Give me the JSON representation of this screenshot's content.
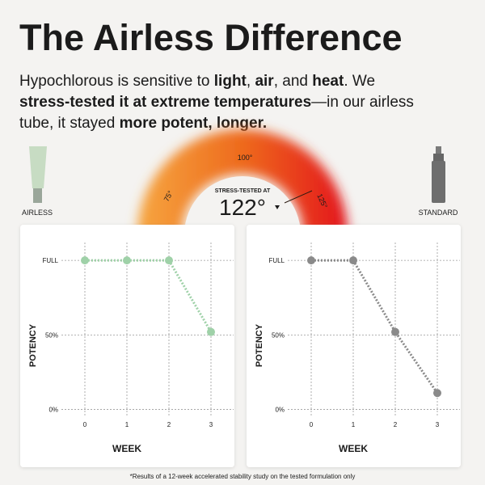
{
  "header": {
    "title": "The Airless Difference",
    "body": [
      [
        {
          "text": "Hypochlorous is sensitive to ",
          "bold": false
        },
        {
          "text": "light",
          "bold": true
        },
        {
          "text": ", ",
          "bold": false
        },
        {
          "text": "air",
          "bold": true
        },
        {
          "text": ", and ",
          "bold": false
        },
        {
          "text": "heat",
          "bold": true
        },
        {
          "text": ". We",
          "bold": false
        }
      ],
      [
        {
          "text": "stress-tested it at extreme temperatures",
          "bold": true
        },
        {
          "text": "—in our airless",
          "bold": false
        }
      ],
      [
        {
          "text": "tube, it stayed ",
          "bold": false
        },
        {
          "text": "more potent, longer.",
          "bold": true
        }
      ]
    ]
  },
  "products": [
    "AIRLESS",
    "STANDARD"
  ],
  "gauge": {
    "caption": "STRESS-TESTED AT",
    "reading": "122°",
    "marks": [
      "75°",
      "100°",
      "125°"
    ]
  },
  "chart_data": [
    {
      "type": "line",
      "x_label": "WEEK",
      "y_label": "POTENCY",
      "x": [
        0,
        1,
        2,
        3
      ],
      "xlim": [
        -0.5,
        3.5
      ],
      "xticks": [
        0,
        1,
        2,
        3
      ],
      "ylim": [
        -10,
        112
      ],
      "yticks": [
        {
          "value": 0,
          "label": "0%"
        },
        {
          "value": 50,
          "label": "50%"
        },
        {
          "value": 100,
          "label": "FULL"
        }
      ],
      "grid": true,
      "series": [
        {
          "color": "#9fd1a8",
          "values": [
            100,
            100,
            100,
            52
          ]
        }
      ]
    },
    {
      "type": "line",
      "x_label": "WEEK",
      "y_label": "POTENCY",
      "x": [
        0,
        1,
        2,
        3
      ],
      "xlim": [
        -0.5,
        3.5
      ],
      "xticks": [
        0,
        1,
        2,
        3
      ],
      "ylim": [
        -10,
        112
      ],
      "yticks": [
        {
          "value": 0,
          "label": "0%"
        },
        {
          "value": 50,
          "label": "50%"
        },
        {
          "value": 100,
          "label": "FULL"
        }
      ],
      "grid": true,
      "series": [
        {
          "color": "#8a8a8a",
          "values": [
            100,
            100,
            52,
            11
          ]
        }
      ]
    }
  ],
  "footnote": "*Results of a 12-week accelerated stability study on the tested formulation only"
}
